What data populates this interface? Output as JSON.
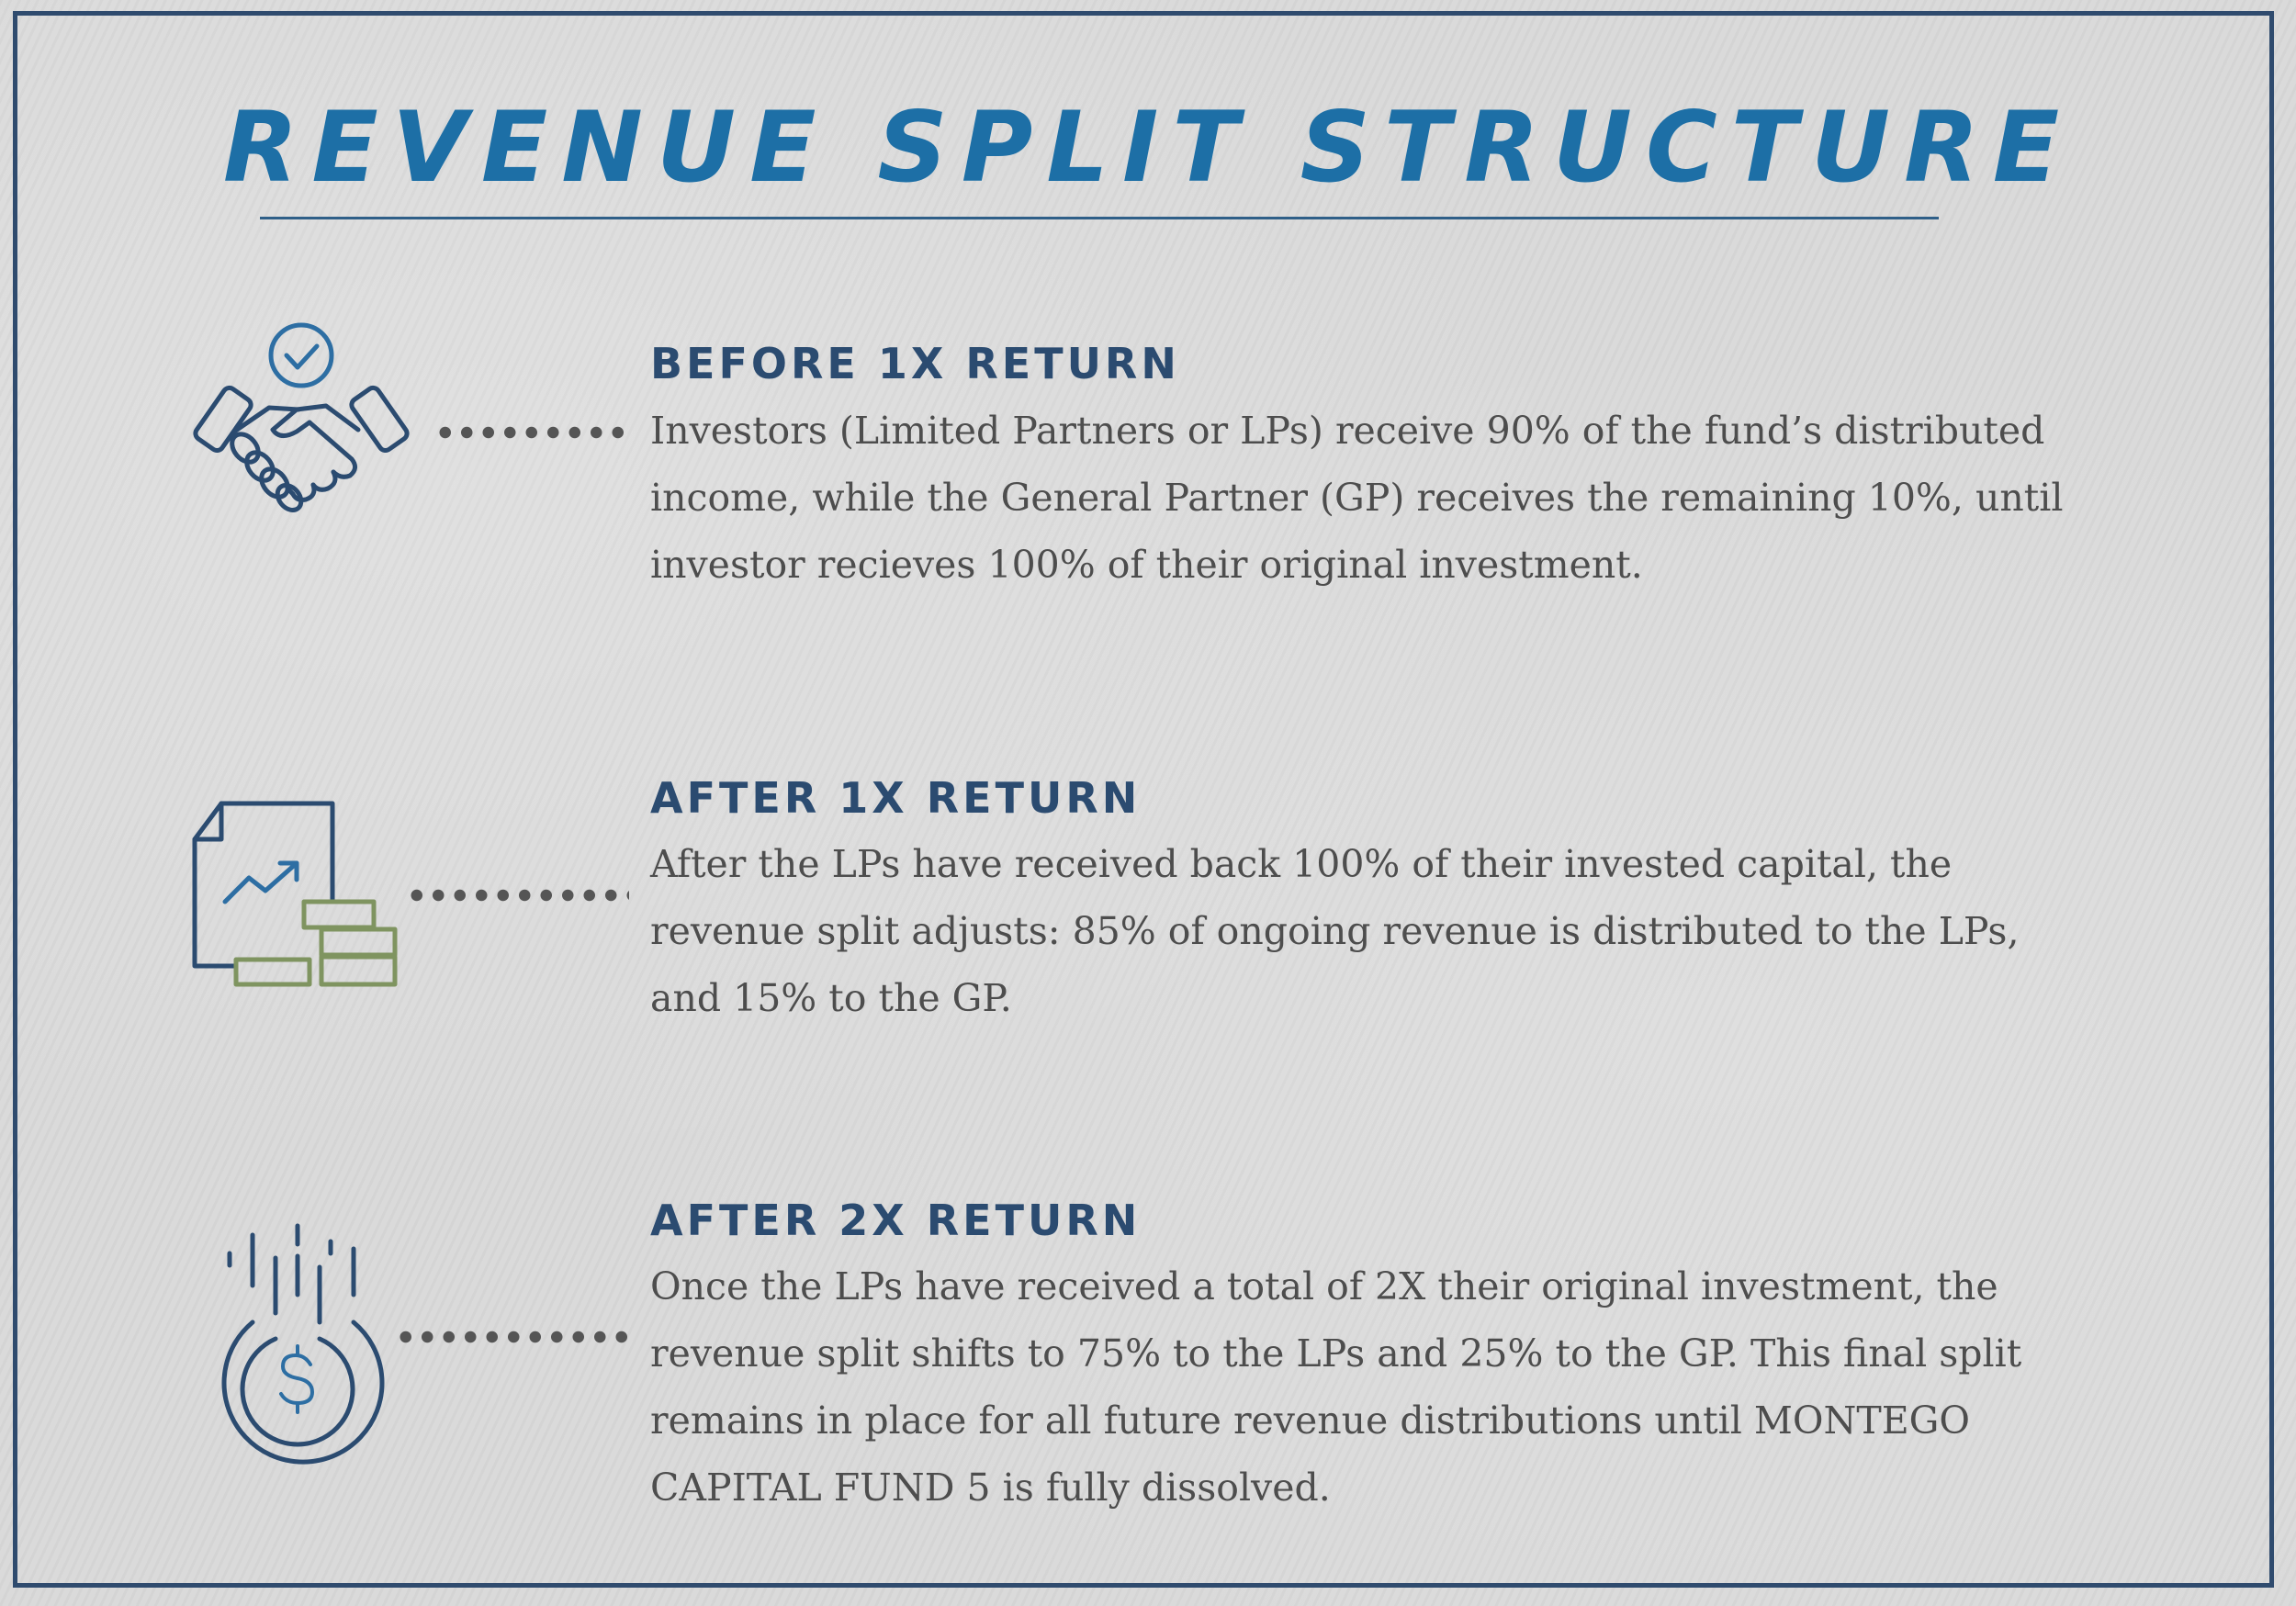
{
  "title": "REVENUE SPLIT STRUCTURE",
  "colors": {
    "background": "#d9d9d9",
    "frame": "#2f4b6e",
    "title": "#1d6fa6",
    "heading": "#2b4b70",
    "body_text": "#4d4d4d",
    "icon_navy": "#2b4b70",
    "icon_blue": "#2d6ea3",
    "icon_green": "#7f9460"
  },
  "sections": [
    {
      "icon": "handshake-check-icon",
      "heading": "BEFORE 1X RETURN",
      "body": "Investors (Limited Partners or LPs) receive 90% of the fund’s distributed income, while the General Partner (GP) receives the remaining 10%, until investor recieves 100% of their original investment."
    },
    {
      "icon": "document-growth-chart-icon",
      "heading": "AFTER 1X RETURN",
      "body": "After the LPs have received back 100% of their invested capital, the revenue split adjusts: 85% of ongoing revenue is distributed to the LPs, and 15% to the GP."
    },
    {
      "icon": "falling-dollar-coin-icon",
      "heading": "AFTER 2X RETURN",
      "body": "Once the LPs have received a total of 2X their original investment, the revenue split shifts to 75% to the LPs and 25% to the GP. This final split remains in place for all future revenue distributions until MONTEGO CAPITAL FUND 5 is fully dissolved."
    }
  ]
}
